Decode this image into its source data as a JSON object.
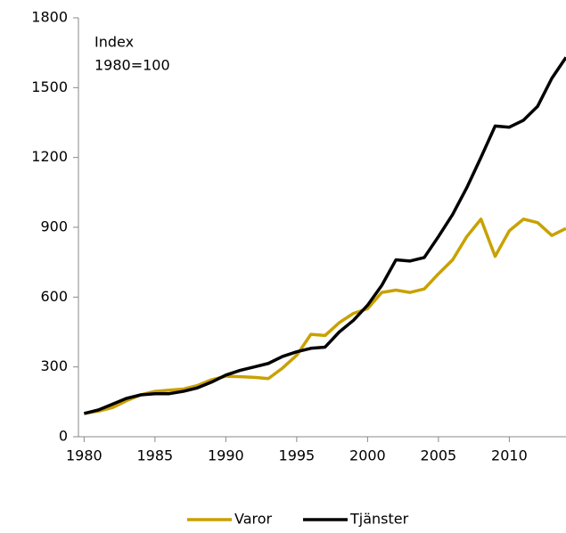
{
  "chart_data": {
    "type": "line",
    "annotations": [
      "Index",
      "1980=100"
    ],
    "x": [
      1980,
      1981,
      1982,
      1983,
      1984,
      1985,
      1986,
      1987,
      1988,
      1989,
      1990,
      1991,
      1992,
      1993,
      1994,
      1995,
      1996,
      1997,
      1998,
      1999,
      2000,
      2001,
      2002,
      2003,
      2004,
      2005,
      2006,
      2007,
      2008,
      2009,
      2010,
      2011,
      2012,
      2013,
      2014
    ],
    "series": [
      {
        "name": "Varor",
        "color": "#c9a100",
        "values": [
          100,
          110,
          125,
          155,
          180,
          195,
          200,
          205,
          220,
          245,
          260,
          258,
          255,
          250,
          295,
          350,
          440,
          435,
          490,
          530,
          550,
          620,
          630,
          620,
          635,
          700,
          760,
          860,
          935,
          775,
          885,
          935,
          920,
          865,
          895
        ]
      },
      {
        "name": "Tjänster",
        "color": "#000000",
        "values": [
          100,
          115,
          140,
          165,
          180,
          185,
          185,
          195,
          210,
          235,
          265,
          285,
          300,
          315,
          345,
          365,
          380,
          385,
          450,
          500,
          565,
          650,
          760,
          755,
          770,
          860,
          955,
          1070,
          1200,
          1335,
          1330,
          1360,
          1420,
          1540,
          1630
        ]
      }
    ],
    "xlim": [
      1979.6,
      2014
    ],
    "xticks": [
      1980,
      1985,
      1990,
      1995,
      2000,
      2005,
      2010
    ],
    "ylim": [
      0,
      1800
    ],
    "yticks": [
      0,
      300,
      600,
      900,
      1200,
      1500,
      1800
    ],
    "legend": "bottom"
  }
}
